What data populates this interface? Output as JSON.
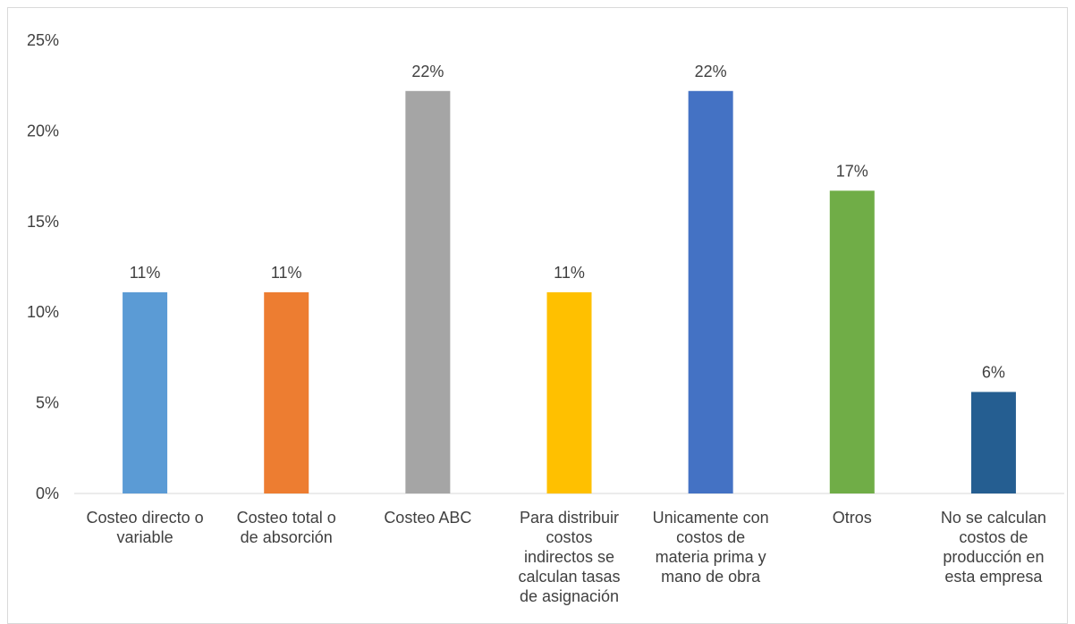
{
  "chart_data": {
    "type": "bar",
    "title": "",
    "xlabel": "",
    "ylabel": "",
    "ylim": [
      0,
      25
    ],
    "y_ticks": [
      "0%",
      "5%",
      "10%",
      "15%",
      "20%",
      "25%"
    ],
    "y_tick_values": [
      0,
      5,
      10,
      15,
      20,
      25
    ],
    "grid": false,
    "legend": "none",
    "categories": [
      [
        "Costeo directo o",
        "variable"
      ],
      [
        "Costeo total o",
        "de absorción"
      ],
      [
        "Costeo ABC"
      ],
      [
        "Para distribuir",
        "costos",
        "indirectos se",
        "calculan tasas",
        "de asignación"
      ],
      [
        "Unicamente con",
        "costos de",
        "materia prima y",
        "mano de obra"
      ],
      [
        "Otros"
      ],
      [
        "No se calculan",
        "costos de",
        "producción en",
        "esta empresa"
      ]
    ],
    "values": [
      11.1,
      11.1,
      22.2,
      11.1,
      22.2,
      16.7,
      5.6
    ],
    "data_labels": [
      "11%",
      "11%",
      "22%",
      "11%",
      "22%",
      "17%",
      "6%"
    ],
    "colors": [
      "#5b9bd5",
      "#ed7d31",
      "#a5a5a5",
      "#ffc000",
      "#4472c4",
      "#70ad47",
      "#255e91"
    ]
  }
}
